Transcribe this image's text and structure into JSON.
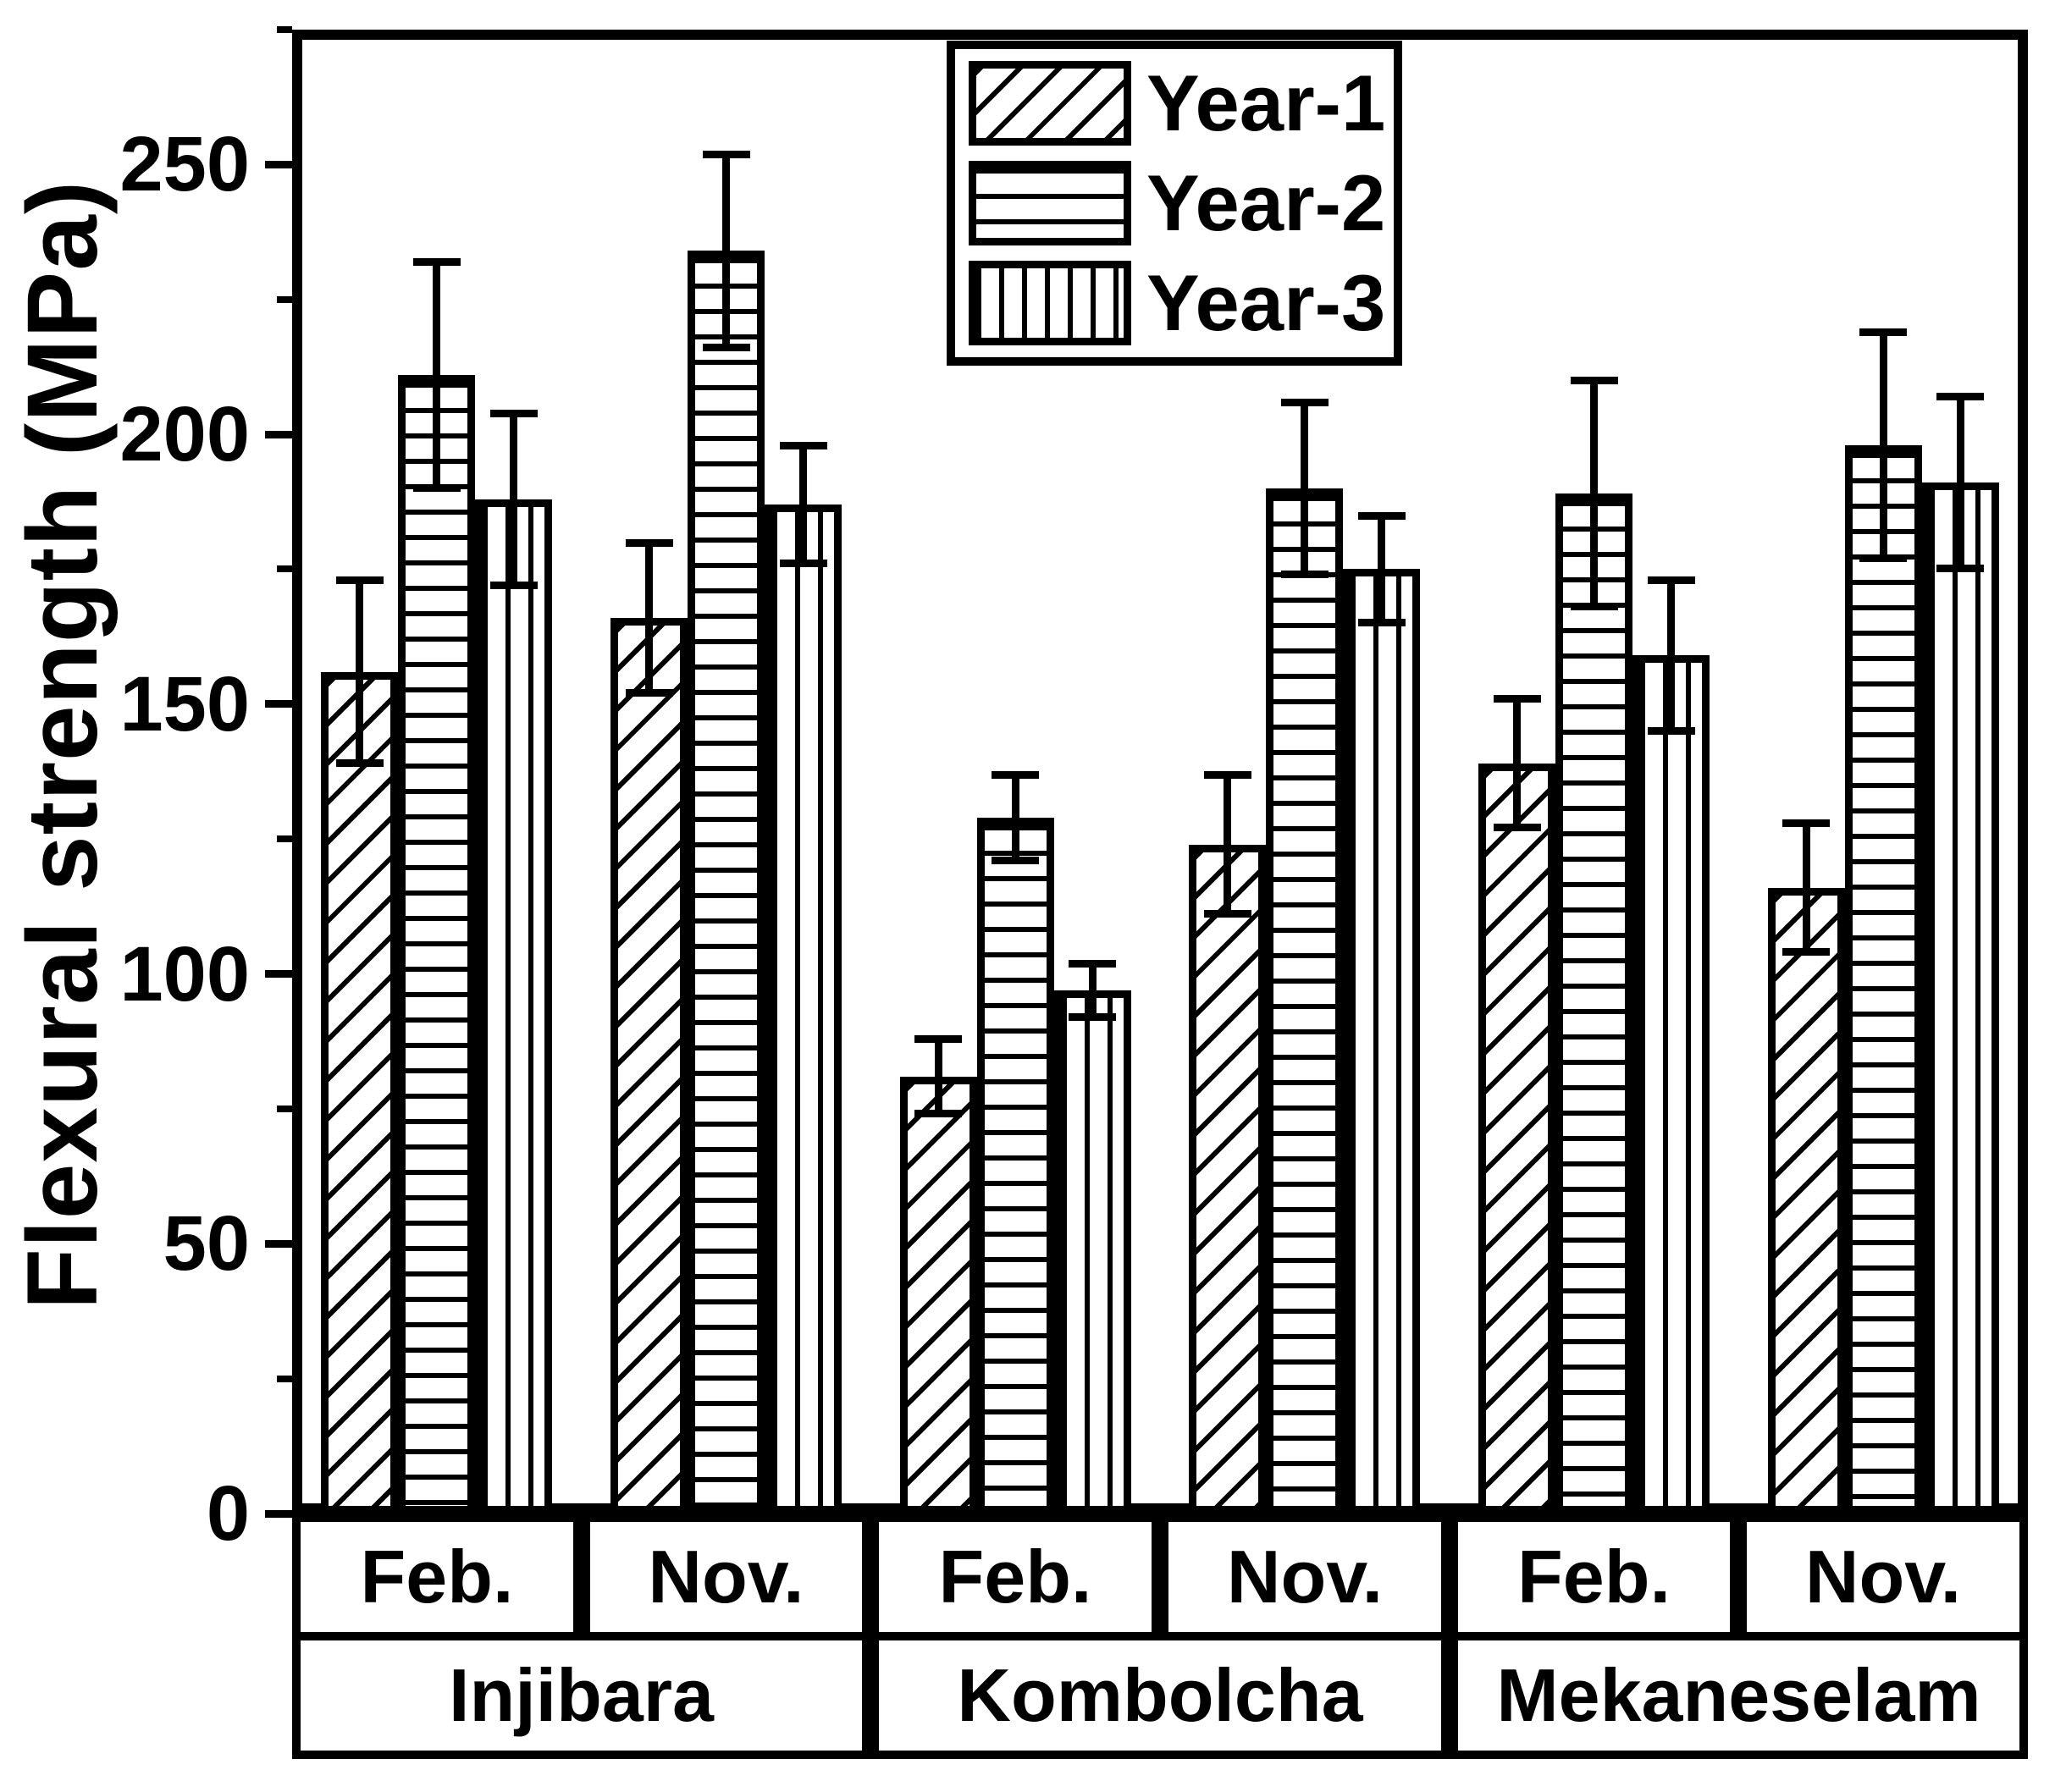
{
  "figure": {
    "background": "#ffffff",
    "ink": "#000000"
  },
  "y_axis": {
    "title": "Flexural strength (MPa)",
    "min": 0,
    "max": 275,
    "major_ticks": [
      0,
      50,
      100,
      150,
      200,
      250
    ],
    "minor_ticks": [
      25,
      75,
      125,
      175,
      225,
      275
    ]
  },
  "x_axis": {
    "month_cells": [
      "Feb.",
      "Nov.",
      "Feb.",
      "Nov.",
      "Feb.",
      "Nov."
    ],
    "location_cells": [
      "Injibara",
      "Kombolcha",
      "Mekaneselam"
    ]
  },
  "legend": {
    "position": "upper center",
    "items": [
      {
        "label": "Year-1",
        "hatch": "diagonal"
      },
      {
        "label": "Year-2",
        "hatch": "horizontal"
      },
      {
        "label": "Year-3",
        "hatch": "vertical"
      }
    ]
  },
  "chart_data": {
    "type": "bar",
    "title": "",
    "xlabel": "",
    "ylabel": "Flexural strength (MPa)",
    "ylim": [
      0,
      275
    ],
    "grid": false,
    "error_bars": true,
    "legend_position": "upper center",
    "categories": [
      "Injibara Feb.",
      "Injibara Nov.",
      "Kombolcha Feb.",
      "Kombolcha Nov.",
      "Mekaneselam Feb.",
      "Mekaneselam Nov."
    ],
    "group_months": [
      "Feb.",
      "Nov.",
      "Feb.",
      "Nov.",
      "Feb.",
      "Nov."
    ],
    "group_locations": [
      "Injibara",
      "Injibara",
      "Kombolcha",
      "Kombolcha",
      "Mekaneselam",
      "Mekaneselam"
    ],
    "series": [
      {
        "name": "Year-1",
        "hatch": "diagonal",
        "values": [
          156,
          166,
          81,
          124,
          139,
          116
        ],
        "errors": [
          17,
          14,
          7,
          13,
          12,
          12
        ]
      },
      {
        "name": "Year-2",
        "hatch": "horizontal",
        "values": [
          211,
          234,
          129,
          190,
          189,
          198
        ],
        "errors": [
          21,
          18,
          8,
          16,
          21,
          21
        ]
      },
      {
        "name": "Year-3",
        "hatch": "vertical",
        "values": [
          188,
          187,
          97,
          175,
          159,
          191
        ],
        "errors": [
          16,
          11,
          5,
          10,
          14,
          16
        ]
      }
    ]
  }
}
